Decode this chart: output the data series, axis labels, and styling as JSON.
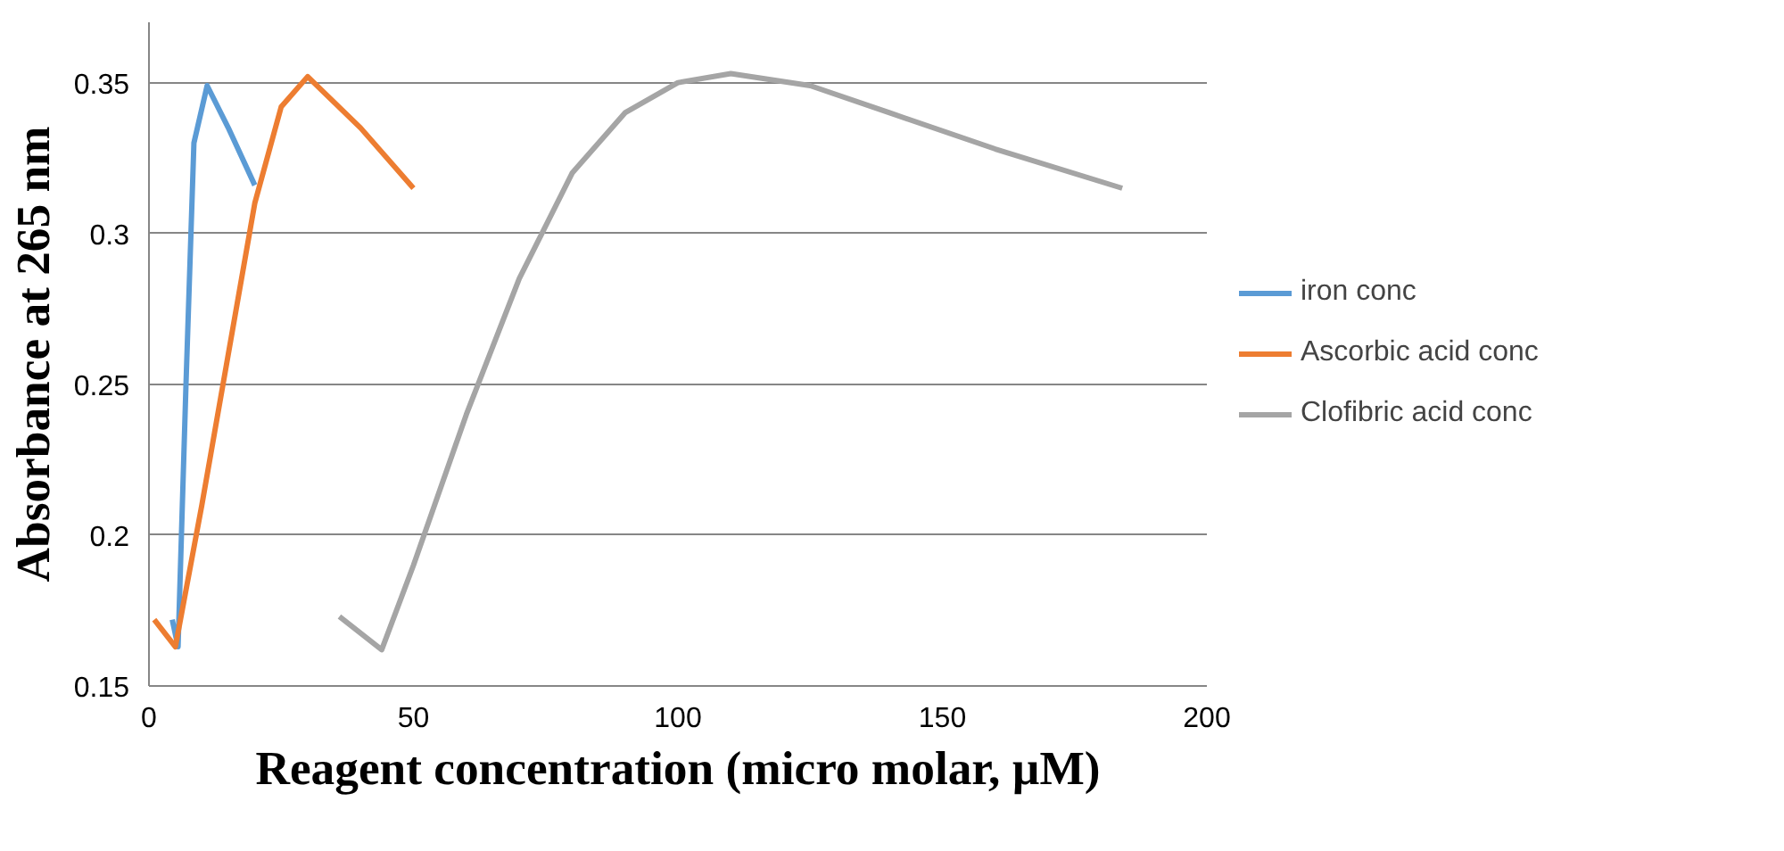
{
  "chart_data": {
    "type": "line",
    "xlabel": "Reagent concentration (micro molar, µM)",
    "ylabel": "Absorbance at 265 nm",
    "xlim": [
      0,
      200
    ],
    "xticks": [
      0,
      50,
      100,
      150,
      200
    ],
    "ylim": [
      0.15,
      0.37
    ],
    "yticks": [
      0.15,
      0.2,
      0.25,
      0.3,
      0.35
    ],
    "grid": "y",
    "legend": "right",
    "marker": "none",
    "line_style": "solid",
    "series": [
      {
        "name": "iron conc",
        "color": "#5b9bd5",
        "x": [
          4.4,
          5.5,
          7,
          8.5,
          11,
          15,
          20
        ],
        "values": [
          0.172,
          0.163,
          0.25,
          0.33,
          0.349,
          0.335,
          0.316
        ]
      },
      {
        "name": "Ascorbic acid conc",
        "color": "#ed7d31",
        "x": [
          1,
          5,
          10,
          15,
          20,
          25,
          30,
          40,
          50
        ],
        "values": [
          0.172,
          0.163,
          0.21,
          0.26,
          0.31,
          0.342,
          0.352,
          0.335,
          0.315
        ]
      },
      {
        "name": "Clofibric acid conc",
        "color": "#a5a5a5",
        "x": [
          36,
          44,
          50,
          60,
          70,
          80,
          90,
          100,
          110,
          125,
          140,
          160,
          184
        ],
        "values": [
          0.173,
          0.162,
          0.19,
          0.24,
          0.285,
          0.32,
          0.34,
          0.35,
          0.353,
          0.349,
          0.34,
          0.328,
          0.315
        ]
      }
    ]
  }
}
